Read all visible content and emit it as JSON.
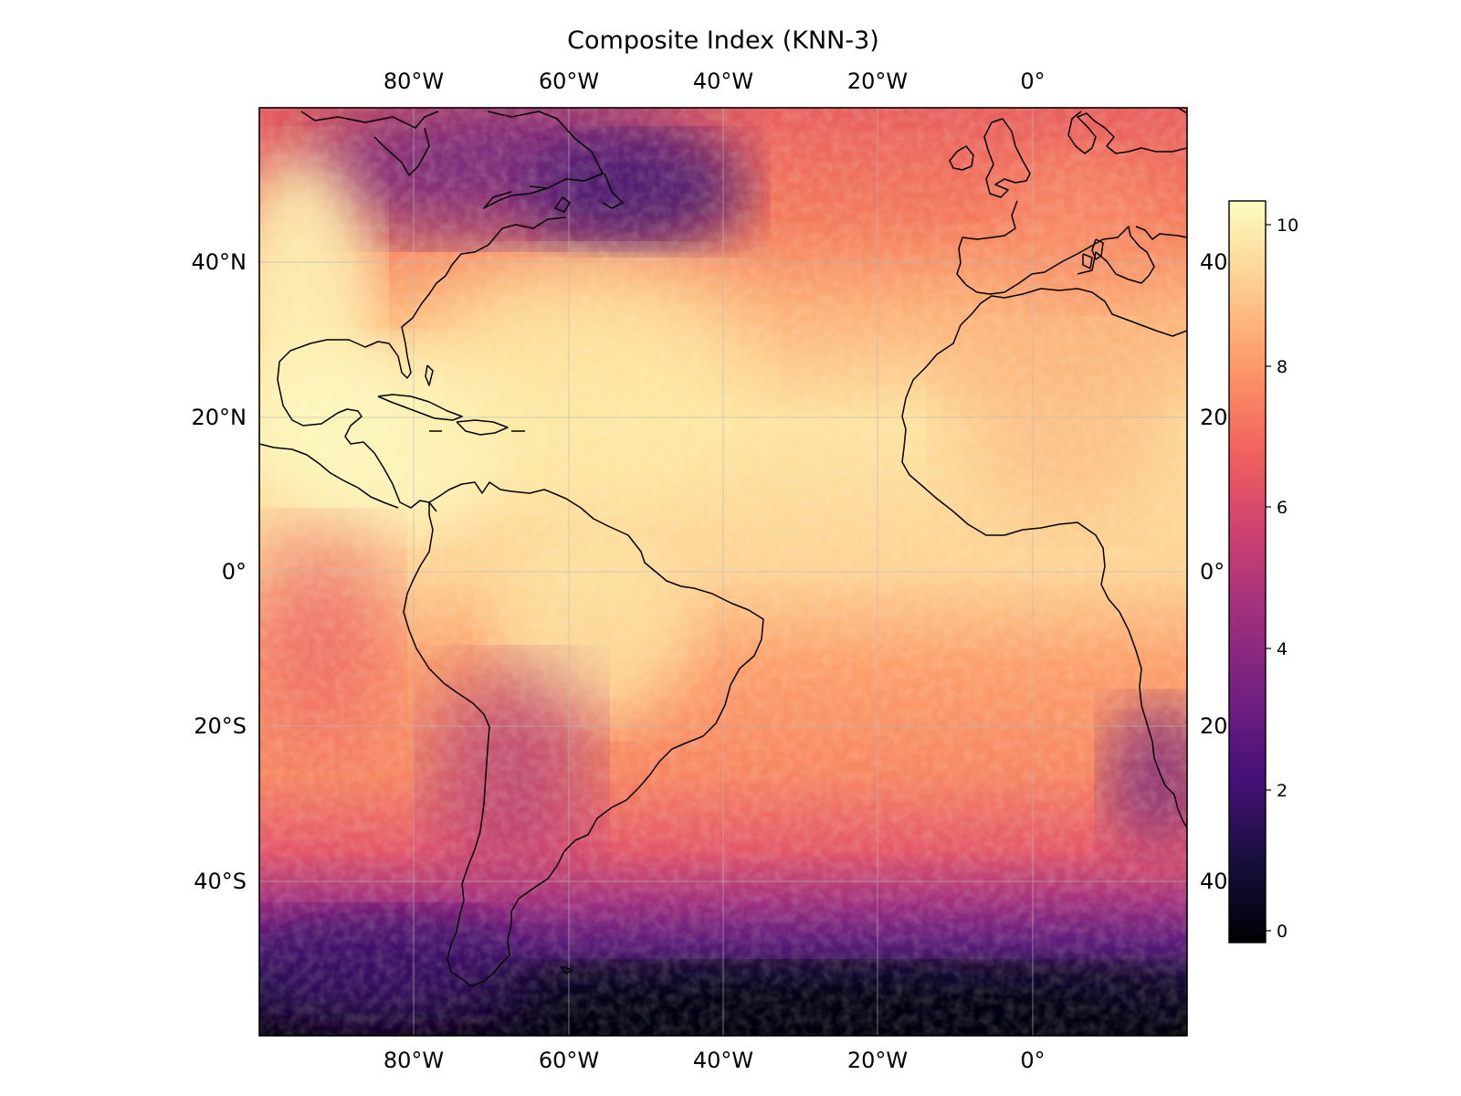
{
  "title": "Composite Index (KNN-3)",
  "map": {
    "projection": "PlateCarree",
    "lon_range": [
      -100,
      20
    ],
    "lat_range": [
      -60,
      60
    ],
    "coastline_color": "#000000",
    "gridline_color": "#b8b8b8",
    "longitude_ticks": [
      "80°W",
      "60°W",
      "40°W",
      "20°W",
      "0°"
    ],
    "latitude_ticks_left": [
      "40°N",
      "20°N",
      "0°",
      "20°S",
      "40°S"
    ],
    "latitude_ticks_right": [
      "40",
      "20",
      "0°",
      "20",
      "40"
    ]
  },
  "colorbar": {
    "colormap": "magma",
    "range": [
      -0.2,
      10.5
    ],
    "ticks": [
      "10",
      "8",
      "6",
      "4",
      "2",
      "0"
    ],
    "colors": [
      "#000004",
      "#180f3e",
      "#451077",
      "#721f81",
      "#9e2f7f",
      "#cd4071",
      "#f1605d",
      "#fd9567",
      "#feca8d",
      "#fcfdbf"
    ]
  }
}
